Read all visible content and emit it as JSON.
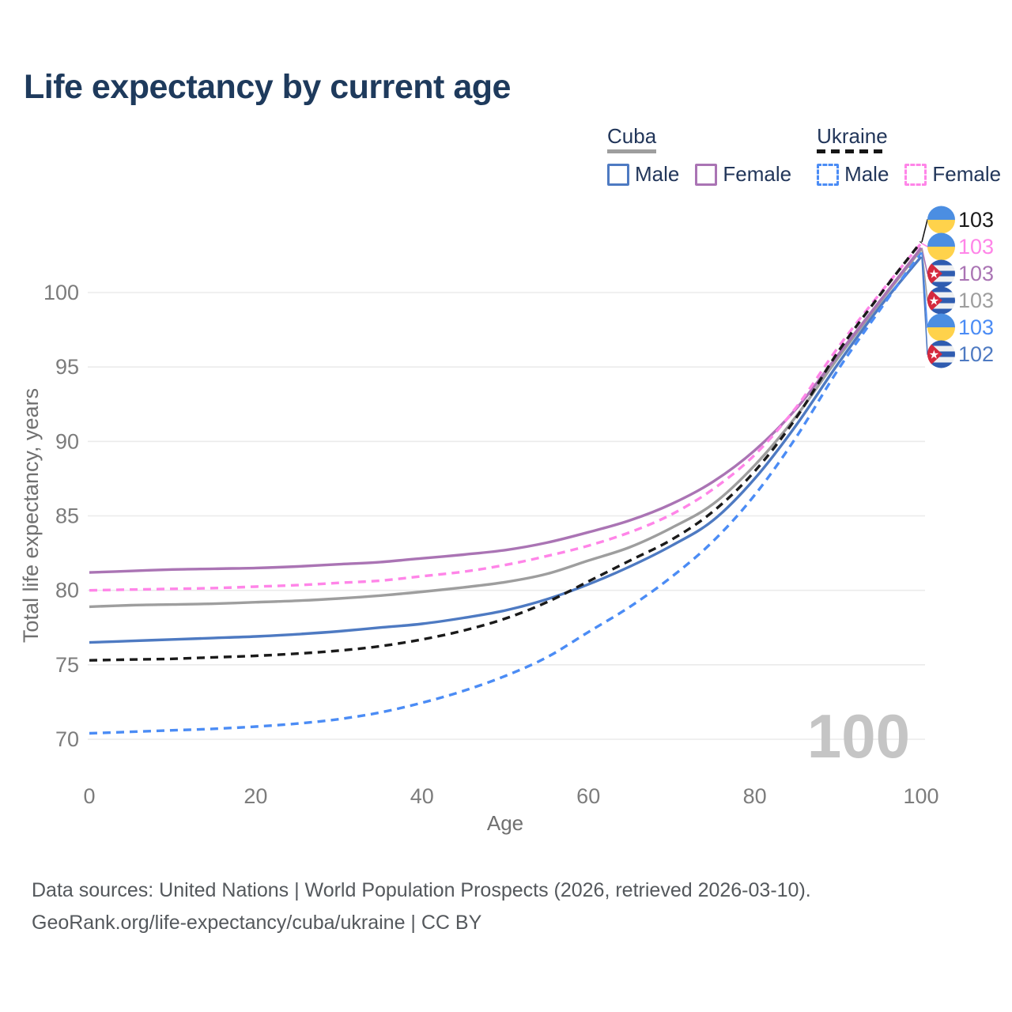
{
  "title": "Life expectancy by current age",
  "legend": {
    "groups": [
      {
        "title": "Cuba",
        "underline_style": "solid",
        "underline_color": "#9e9e9e",
        "items": [
          {
            "label": "Male",
            "color": "#4e7ac2",
            "dashed": false
          },
          {
            "label": "Female",
            "color": "#aa74b4",
            "dashed": false
          }
        ]
      },
      {
        "title": "Ukraine",
        "underline_style": "dashed",
        "underline_color": "#151515",
        "items": [
          {
            "label": "Male",
            "color": "#4b8cf5",
            "dashed": true
          },
          {
            "label": "Female",
            "color": "#ff85e8",
            "dashed": true
          }
        ]
      }
    ]
  },
  "chart_data": {
    "type": "line",
    "title": "Life expectancy by current age",
    "xlabel": "Age",
    "ylabel": "Total life expectancy, years",
    "xlim": [
      0,
      100
    ],
    "ylim": [
      69,
      104
    ],
    "xticks": [
      0,
      20,
      40,
      60,
      80,
      100
    ],
    "yticks": [
      70,
      75,
      80,
      85,
      90,
      95,
      100
    ],
    "grid": "horizontal",
    "legend_position": "top-right",
    "watermark": "100",
    "ages": [
      0,
      5,
      10,
      15,
      20,
      25,
      30,
      35,
      40,
      45,
      50,
      55,
      60,
      65,
      70,
      75,
      80,
      85,
      90,
      95,
      100
    ],
    "series": [
      {
        "name": "Ukraine",
        "legend_group": "Ukraine",
        "color": "#1a1a1a",
        "dashed": true,
        "flag": "ukraine",
        "end_label": "103",
        "values": [
          75.3,
          75.35,
          75.4,
          75.5,
          75.6,
          75.75,
          75.95,
          76.25,
          76.7,
          77.3,
          78.1,
          79.2,
          80.6,
          82.0,
          83.4,
          85.3,
          88.0,
          91.6,
          96.0,
          99.8,
          103.4
        ]
      },
      {
        "name": "Ukraine Female",
        "legend_group": "Ukraine",
        "color": "#ff85e8",
        "dashed": true,
        "flag": "ukraine",
        "end_label": "103",
        "values": [
          80.0,
          80.05,
          80.1,
          80.15,
          80.25,
          80.35,
          80.5,
          80.65,
          80.95,
          81.25,
          81.7,
          82.3,
          83.0,
          83.9,
          85.1,
          86.8,
          89.1,
          92.3,
          96.3,
          99.9,
          103.3
        ]
      },
      {
        "name": "Cuba Female",
        "legend_group": "Cuba",
        "color": "#aa74b4",
        "dashed": false,
        "flag": "cuba",
        "end_label": "103",
        "values": [
          81.2,
          81.3,
          81.4,
          81.45,
          81.5,
          81.6,
          81.75,
          81.9,
          82.15,
          82.4,
          82.7,
          83.2,
          83.9,
          84.7,
          85.8,
          87.3,
          89.4,
          92.2,
          95.8,
          99.4,
          103.0
        ]
      },
      {
        "name": "Cuba",
        "legend_group": "Cuba",
        "color": "#9e9e9e",
        "dashed": false,
        "flag": "cuba",
        "end_label": "103",
        "values": [
          78.9,
          79.0,
          79.05,
          79.1,
          79.2,
          79.3,
          79.45,
          79.65,
          79.9,
          80.2,
          80.55,
          81.1,
          82.0,
          82.9,
          84.2,
          85.8,
          88.4,
          91.7,
          95.6,
          99.3,
          102.9
        ]
      },
      {
        "name": "Ukraine Male",
        "legend_group": "Ukraine",
        "color": "#4b8cf5",
        "dashed": true,
        "flag": "ukraine",
        "end_label": "103",
        "values": [
          70.4,
          70.5,
          70.6,
          70.7,
          70.85,
          71.05,
          71.35,
          71.8,
          72.45,
          73.25,
          74.25,
          75.5,
          77.2,
          78.9,
          80.9,
          83.3,
          86.4,
          90.3,
          94.8,
          98.8,
          102.7
        ]
      },
      {
        "name": "Cuba Male",
        "legend_group": "Cuba",
        "color": "#4e7ac2",
        "dashed": false,
        "flag": "cuba",
        "end_label": "102",
        "values": [
          76.5,
          76.6,
          76.7,
          76.8,
          76.9,
          77.05,
          77.25,
          77.5,
          77.75,
          78.15,
          78.65,
          79.4,
          80.4,
          81.6,
          83.0,
          84.7,
          87.5,
          91.1,
          95.2,
          99.0,
          102.4
        ]
      }
    ]
  },
  "footer": {
    "line1": "Data sources: United Nations | World Population Prospects (2026, retrieved 2026-03-10).",
    "line2": "GeoRank.org/life-expectancy/cuba/ukraine | CC BY"
  }
}
